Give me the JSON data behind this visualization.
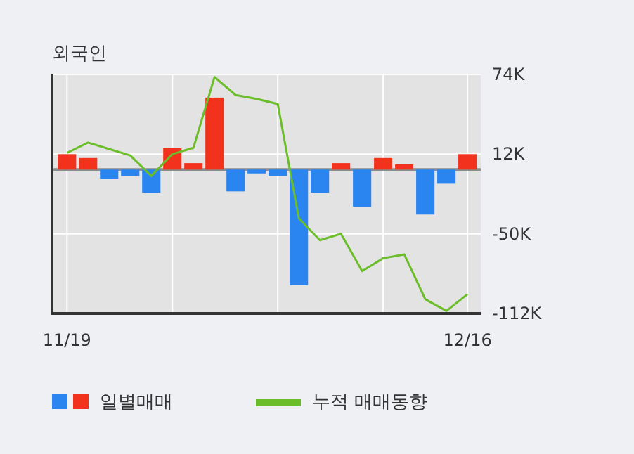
{
  "chart_data": {
    "type": "bar",
    "title": "외국인",
    "categories": [
      "11/19",
      null,
      null,
      null,
      null,
      null,
      null,
      null,
      null,
      null,
      null,
      null,
      null,
      null,
      null,
      null,
      null,
      null,
      null,
      "12/16"
    ],
    "series": [
      {
        "name": "일별매매",
        "colors": [
          "#f2321c",
          "#f2321c",
          "#2a85f0",
          "#2a85f0",
          "#2a85f0",
          "#f2321c",
          "#f2321c",
          "#f2321c",
          "#2a85f0",
          "#2a85f0",
          "#2a85f0",
          "#2a85f0",
          "#2a85f0",
          "#f2321c",
          "#2a85f0",
          "#f2321c",
          "#f2321c",
          "#2a85f0",
          "#2a85f0",
          "#f2321c"
        ],
        "values": [
          12000,
          9000,
          -7000,
          -5000,
          -18000,
          17000,
          5000,
          56000,
          -17000,
          -3000,
          -5000,
          -90000,
          -18000,
          5000,
          -29000,
          9000,
          4000,
          -35000,
          -11000,
          12000
        ]
      },
      {
        "name": "누적 매매동향",
        "type": "line",
        "color": "#6cbd2a",
        "values": [
          13000,
          21000,
          16000,
          11000,
          -5000,
          12000,
          17000,
          72000,
          58000,
          55000,
          51000,
          -38000,
          -55000,
          -50000,
          -79000,
          -69000,
          -66000,
          -101000,
          -110000,
          -97000
        ]
      }
    ],
    "ylim": [
      -112000,
      74000
    ],
    "yticks": [
      {
        "value": 74000,
        "label": "74K"
      },
      {
        "value": 12000,
        "label": "12K"
      },
      {
        "value": -50000,
        "label": "-50K"
      },
      {
        "value": -112000,
        "label": "-112K"
      }
    ],
    "ref_lines": [
      {
        "axis": "y",
        "value": 0,
        "color": "#8c8c8c"
      }
    ],
    "grid": true,
    "legend": "bottom",
    "marker": "none",
    "line_style": "solid"
  }
}
